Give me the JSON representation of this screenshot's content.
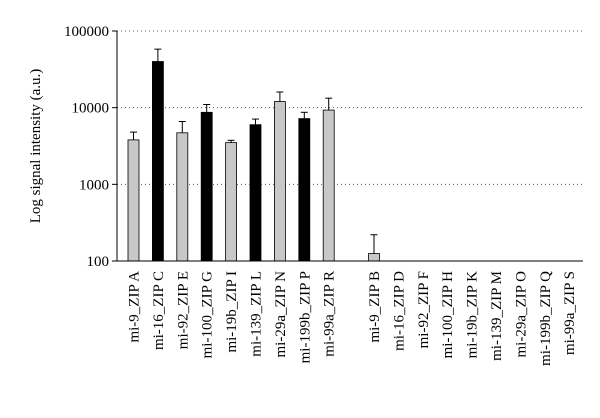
{
  "chart_data": {
    "type": "bar",
    "title": "",
    "xlabel": "",
    "ylabel": "Log signal intensity (a.u.)",
    "yscale": "log",
    "ylim": [
      100,
      100000
    ],
    "yticks": [
      100,
      1000,
      10000,
      100000
    ],
    "ytick_labels": [
      "100",
      "1000",
      "10000",
      "100000"
    ],
    "grid": "horizontal dotted",
    "legend": "none",
    "colors": {
      "gray": "#c8c8c8",
      "black": "#000000"
    },
    "groups": [
      {
        "categories": [
          "mi-9_ZIP A",
          "mi-16_ZIP C",
          "mi-92_ZIP E",
          "mi-100_ZIP G",
          "mi-19b_ZIP I",
          "mi-139_ZIP L",
          "mi-29a_ZIP N",
          "mi-199b_ZIP P",
          "mi-99a_ZIP R"
        ],
        "values": [
          3800,
          40000,
          4700,
          8700,
          3500,
          6000,
          12000,
          7200,
          9300
        ],
        "errors": [
          1000,
          18000,
          1900,
          2300,
          250,
          1100,
          4000,
          1500,
          4000
        ],
        "fill": [
          "gray",
          "black",
          "gray",
          "black",
          "gray",
          "black",
          "gray",
          "black",
          "gray"
        ]
      },
      {
        "categories": [
          "mi-9_ZIP B",
          "mi-16_ZIP D",
          "mi-92_ZIP F",
          "mi-100_ZIP H",
          "mi-19b_ZIP K",
          "mi-139_ZIP M",
          "mi-29a_ZIP O",
          "mi-199b_ZIP Q",
          "mi-99a_ZIP S"
        ],
        "values": [
          125,
          100,
          100,
          100,
          100,
          100,
          100,
          100,
          100
        ],
        "errors": [
          95,
          0,
          0,
          0,
          0,
          0,
          0,
          0,
          0
        ],
        "fill": [
          "gray",
          "gray",
          "gray",
          "gray",
          "gray",
          "gray",
          "gray",
          "gray",
          "gray"
        ]
      }
    ]
  }
}
